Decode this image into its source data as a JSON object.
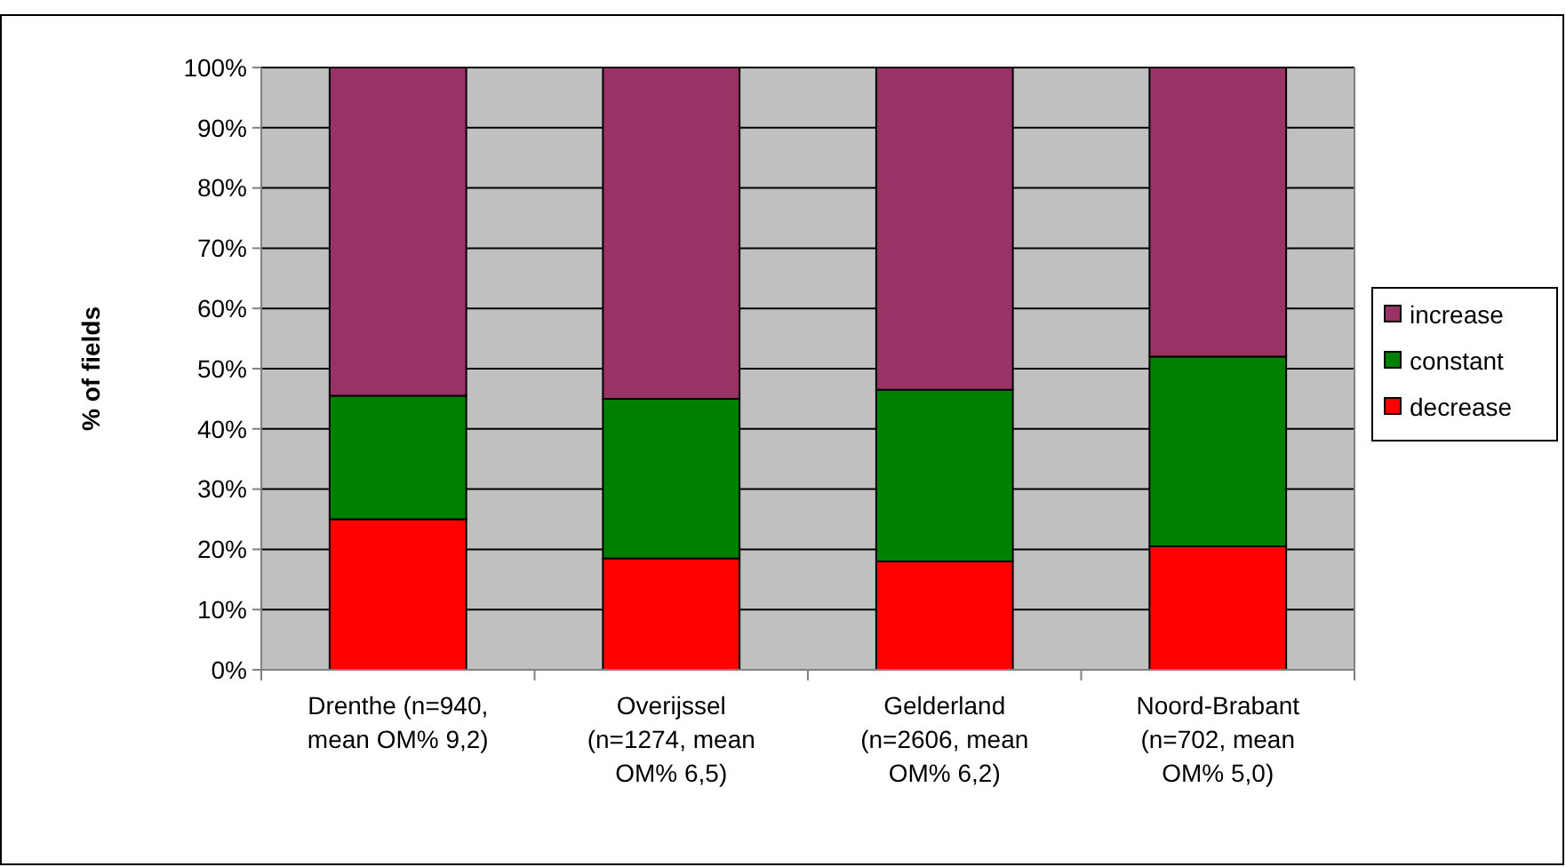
{
  "chart_data": {
    "type": "bar",
    "stacked": true,
    "ylabel": "% of fields",
    "categories": [
      "Drenthe (n=940, mean OM% 9,2)",
      "Overijssel (n=1274, mean OM% 6,5)",
      "Gelderland (n=2606, mean OM% 6,2)",
      "Noord-Brabant (n=702, mean OM% 5,0)"
    ],
    "series": [
      {
        "name": "decrease",
        "color": "#ff0000",
        "values": [
          25,
          18.5,
          18,
          20.5
        ]
      },
      {
        "name": "constant",
        "color": "#008000",
        "values": [
          20.5,
          26.5,
          28.5,
          31.5
        ]
      },
      {
        "name": "increase",
        "color": "#993366",
        "values": [
          54.5,
          55,
          53.5,
          48
        ]
      }
    ],
    "ylim": [
      0,
      100
    ],
    "yticks": [
      {
        "value": 0,
        "label": "0%"
      },
      {
        "value": 10,
        "label": "10%"
      },
      {
        "value": 20,
        "label": "20%"
      },
      {
        "value": 30,
        "label": "30%"
      },
      {
        "value": 40,
        "label": "40%"
      },
      {
        "value": 50,
        "label": "50%"
      },
      {
        "value": 60,
        "label": "60%"
      },
      {
        "value": 70,
        "label": "70%"
      },
      {
        "value": 80,
        "label": "80%"
      },
      {
        "value": 90,
        "label": "90%"
      },
      {
        "value": 100,
        "label": "100%"
      }
    ],
    "grid": "y",
    "legend": "right"
  }
}
